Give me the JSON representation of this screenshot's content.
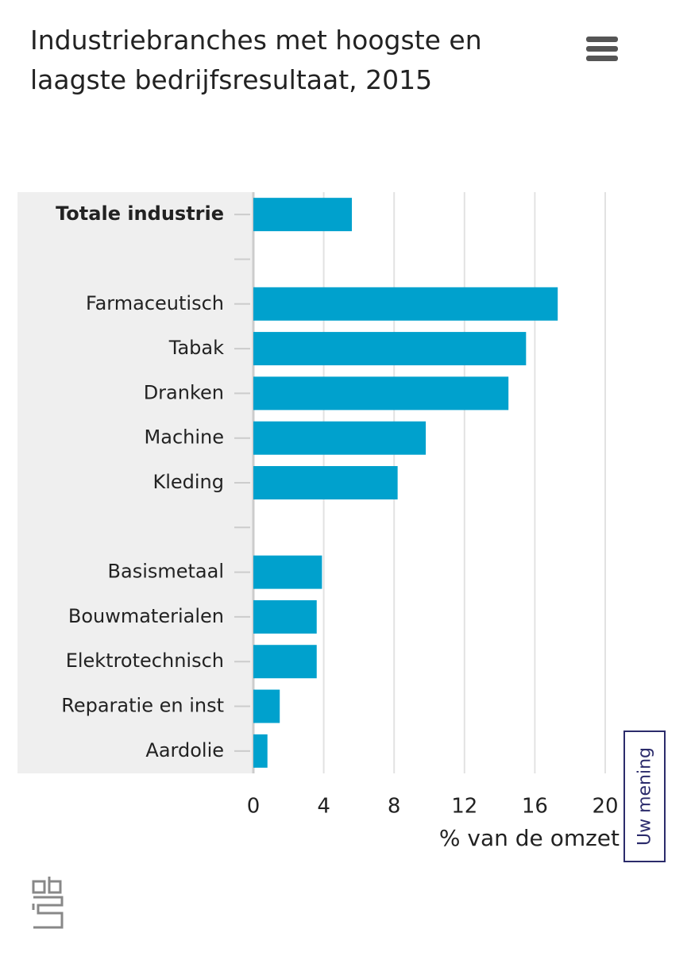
{
  "chart_data": {
    "type": "bar",
    "orientation": "horizontal",
    "title": "Industriebranches met hoogste en laagste bedrijfsresultaat, 2015",
    "xlabel": "% van de omzet",
    "categories": [
      "Totale industrie",
      null,
      "Farmaceutisch",
      "Tabak",
      "Dranken",
      "Machine",
      "Kleding",
      null,
      "Basismetaal",
      "Bouwmaterialen",
      "Elektrotechnisch",
      "Reparatie en inst",
      "Aardolie"
    ],
    "values": [
      5.6,
      null,
      17.3,
      15.5,
      14.5,
      9.8,
      8.2,
      null,
      3.9,
      3.6,
      3.6,
      1.5,
      0.8
    ],
    "color": "#00a1cd",
    "xlim": [
      0,
      20
    ],
    "xticks": [
      0,
      4,
      8,
      12,
      16,
      20
    ],
    "grid": true
  },
  "feedback_button": "Uw mening"
}
